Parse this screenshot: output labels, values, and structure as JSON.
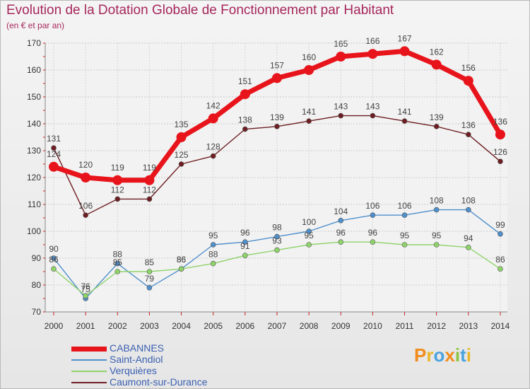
{
  "title": "Evolution de la Dotation Globale de Fonctionnement par Habitant",
  "subtitle": "(en € et par an)",
  "brand": {
    "text": "Proxiti",
    "letters": [
      "P",
      "r",
      "o",
      "x",
      "i",
      "t",
      "i"
    ],
    "colors": [
      "#f28c1a",
      "#e8b72a",
      "#4aa3df",
      "#f28c1a",
      "#8cc63f",
      "#4aa3df",
      "#e8b72a"
    ]
  },
  "chart_data": {
    "type": "line",
    "title": "Evolution de la Dotation Globale de Fonctionnement par Habitant",
    "subtitle": "(en € et par an)",
    "xlabel": "",
    "ylabel": "",
    "x": [
      2000,
      2001,
      2002,
      2003,
      2004,
      2005,
      2006,
      2007,
      2008,
      2009,
      2010,
      2011,
      2012,
      2013,
      2014
    ],
    "ylim": [
      70,
      170
    ],
    "yticks": [
      70,
      80,
      90,
      100,
      110,
      120,
      130,
      140,
      150,
      160,
      170
    ],
    "grid": true,
    "legend_position": "bottom-left",
    "series": [
      {
        "name": "CABANNES",
        "color": "#e8141b",
        "values": [
          124,
          120,
          119,
          119,
          135,
          142,
          151,
          157,
          160,
          165,
          166,
          167,
          162,
          156,
          136
        ]
      },
      {
        "name": "Saint-Andiol",
        "color": "#4f8fcb",
        "values": [
          90,
          75,
          88,
          79,
          86,
          95,
          96,
          98,
          100,
          104,
          106,
          106,
          108,
          108,
          99
        ]
      },
      {
        "name": "Verquières",
        "color": "#8fd36b",
        "values": [
          86,
          76,
          85,
          85,
          86,
          88,
          91,
          93,
          95,
          96,
          96,
          95,
          95,
          94,
          86
        ]
      },
      {
        "name": "Caumont-sur-Durance",
        "color": "#6e1e22",
        "values": [
          131,
          106,
          112,
          112,
          125,
          128,
          138,
          139,
          141,
          143,
          143,
          141,
          139,
          136,
          126
        ]
      }
    ]
  }
}
